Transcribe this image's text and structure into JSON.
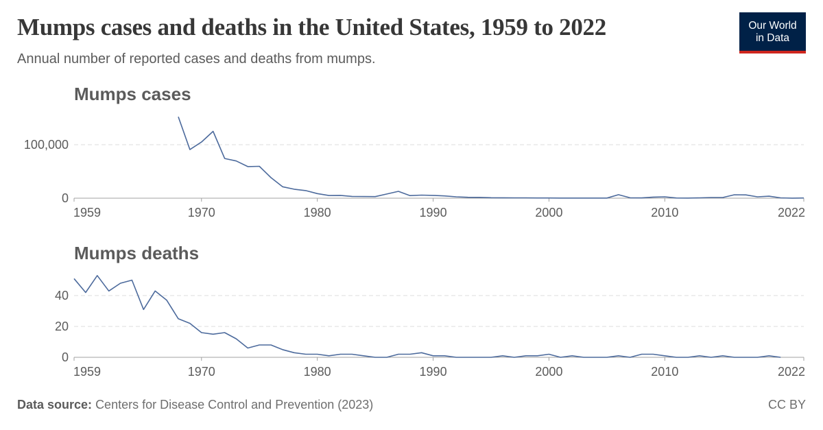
{
  "title": "Mumps cases and deaths in the United States, 1959 to 2022",
  "subtitle": "Annual number of reported cases and deaths from mumps.",
  "logo": {
    "line1": "Our World",
    "line2": "in Data"
  },
  "footer": {
    "source_label": "Data source:",
    "source_text": "Centers for Disease Control and Prevention (2023)",
    "license": "CC BY"
  },
  "colors": {
    "line": "#4c6a9c",
    "grid": "#dddddd",
    "axis": "#a1a1a1",
    "logo_bg": "#002147",
    "logo_accent": "#ce261e"
  },
  "chart_data": [
    {
      "type": "line",
      "title": "Mumps cases",
      "xlim": [
        1959,
        2022
      ],
      "ylim": [
        0,
        155000
      ],
      "x_ticks": [
        "1959",
        "1970",
        "1980",
        "1990",
        "2000",
        "2010",
        "2022"
      ],
      "y_ticks": [
        {
          "value": 0,
          "label": "0"
        },
        {
          "value": 100000,
          "label": "100,000"
        }
      ],
      "grid": true,
      "x": [
        1968,
        1969,
        1970,
        1971,
        1972,
        1973,
        1974,
        1975,
        1976,
        1977,
        1978,
        1979,
        1980,
        1981,
        1982,
        1983,
        1984,
        1985,
        1986,
        1987,
        1988,
        1989,
        1990,
        1991,
        1992,
        1993,
        1994,
        1995,
        1996,
        1997,
        1998,
        1999,
        2000,
        2001,
        2002,
        2003,
        2004,
        2005,
        2006,
        2007,
        2008,
        2009,
        2010,
        2011,
        2012,
        2013,
        2014,
        2015,
        2016,
        2017,
        2018,
        2019,
        2020,
        2021,
        2022
      ],
      "values": [
        152209,
        90918,
        104953,
        124939,
        74215,
        69612,
        59128,
        59647,
        38492,
        21436,
        16817,
        14225,
        8576,
        4941,
        5270,
        3355,
        3021,
        2982,
        7790,
        12848,
        4866,
        5712,
        5292,
        4264,
        2572,
        1692,
        1537,
        906,
        751,
        683,
        666,
        387,
        338,
        266,
        270,
        231,
        258,
        314,
        6584,
        800,
        454,
        1991,
        2612,
        370,
        229,
        584,
        1223,
        1329,
        6369,
        6109,
        2515,
        3780,
        616,
        154,
        324
      ]
    },
    {
      "type": "line",
      "title": "Mumps deaths",
      "xlim": [
        1959,
        2022
      ],
      "ylim": [
        0,
        55
      ],
      "x_ticks": [
        "1959",
        "1970",
        "1980",
        "1990",
        "2000",
        "2010",
        "2022"
      ],
      "y_ticks": [
        {
          "value": 0,
          "label": "0"
        },
        {
          "value": 20,
          "label": "20"
        },
        {
          "value": 40,
          "label": "40"
        }
      ],
      "grid": true,
      "x": [
        1959,
        1960,
        1961,
        1962,
        1963,
        1964,
        1965,
        1966,
        1967,
        1968,
        1969,
        1970,
        1971,
        1972,
        1973,
        1974,
        1975,
        1976,
        1977,
        1978,
        1979,
        1980,
        1981,
        1982,
        1983,
        1984,
        1985,
        1986,
        1987,
        1988,
        1989,
        1990,
        1991,
        1992,
        1993,
        1994,
        1995,
        1996,
        1997,
        1998,
        1999,
        2000,
        2001,
        2002,
        2003,
        2004,
        2005,
        2006,
        2007,
        2008,
        2009,
        2010,
        2011,
        2012,
        2013,
        2014,
        2015,
        2016,
        2017,
        2018,
        2019,
        2020
      ],
      "values": [
        51,
        42,
        53,
        43,
        48,
        50,
        31,
        43,
        37,
        25,
        22,
        16,
        15,
        16,
        12,
        6,
        8,
        8,
        5,
        3,
        2,
        2,
        1,
        2,
        2,
        1,
        0,
        0,
        2,
        2,
        3,
        1,
        1,
        0,
        0,
        0,
        0,
        1,
        0,
        1,
        1,
        2,
        0,
        1,
        0,
        0,
        0,
        1,
        0,
        2,
        2,
        1,
        0,
        0,
        1,
        0,
        1,
        0,
        0,
        0,
        1,
        0
      ]
    }
  ]
}
